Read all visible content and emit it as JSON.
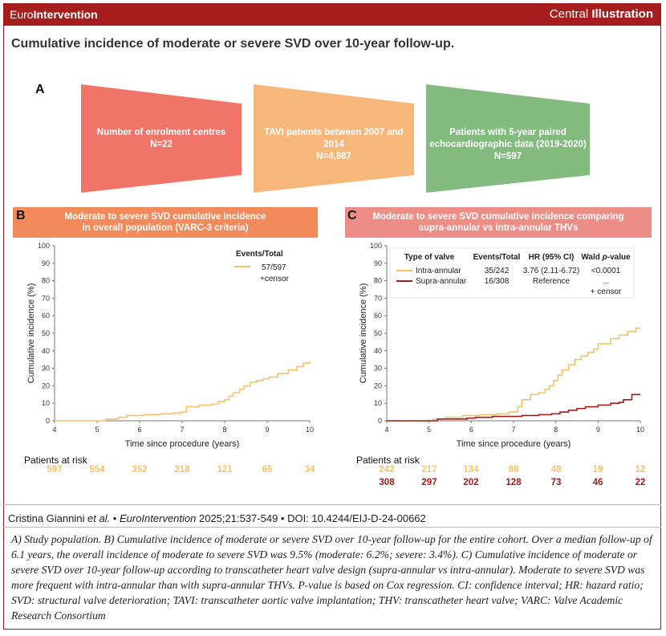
{
  "header": {
    "brand_plain": "Euro",
    "brand_bold": "Intervention",
    "right_plain": "Central ",
    "right_bold": "Illustration"
  },
  "title": "Cumulative incidence of moderate or severe SVD over 10-year follow-up.",
  "panel_a": {
    "letter": "A",
    "steps": [
      {
        "line1": "Number of enrolment centres",
        "line2": "N=22",
        "line3": "",
        "color": "#ef7569"
      },
      {
        "line1": "TAVI patients between 2007 and 2014",
        "line2": "N=4,987",
        "line3": "",
        "color": "#f8b77a"
      },
      {
        "line1": "Patients with 5-year paired",
        "line2": "echocardiographic data (2019-2020)",
        "line3": "N=597",
        "color": "#82bb7d"
      }
    ]
  },
  "panel_b": {
    "letter": "B",
    "title_line1": "Moderate to severe SVD cumulative incidence",
    "title_line2": "in overall population (VARC-3 criteria)",
    "title_color": "#f28a5c",
    "legend_header": "Events/Total",
    "legend_value": "57/597",
    "legend_censor": "+censor",
    "risk_label": "Patients at risk",
    "risk_values": [
      "597",
      "554",
      "352",
      "218",
      "121",
      "65",
      "34"
    ]
  },
  "panel_c": {
    "letter": "C",
    "title_line1": "Moderate to severe SVD cumulative incidence comparing",
    "title_line2": "supra-annular vs intra-annular THVs",
    "title_color": "#ed8e86",
    "legend_headers": {
      "type": "Type of valve",
      "events": "Events/Total",
      "hr": "HR (95% CI)",
      "wald": "Wald ",
      "wald_p": "p",
      "wald_rest": "-value"
    },
    "rows": [
      {
        "name": "Intra-annular",
        "events": "35/242",
        "hr": "3.76 (2.11-6.72)",
        "p": "<0.0001"
      },
      {
        "name": "Supra-annular",
        "events": "16/308",
        "hr": "Reference",
        "p": "..."
      }
    ],
    "legend_censor": "+ censor",
    "risk_label": "Patients at risk",
    "risk_intra": [
      "242",
      "217",
      "134",
      "88",
      "48",
      "19",
      "12"
    ],
    "risk_supra": [
      "308",
      "297",
      "202",
      "128",
      "73",
      "46",
      "22"
    ]
  },
  "citation": {
    "authors": "Cristina Giannini ",
    "etal": "et al.",
    "sep": " • ",
    "journal": "EuroIntervention",
    "rest": " 2025;21:537-549 • DOI: 10.4244/EIJ-D-24-00662"
  },
  "caption": "A) Study population. B) Cumulative incidence of moderate or severe SVD over 10-year follow-up for the entire cohort. Over a median follow-up of 6.1 years, the overall incidence of moderate to severe SVD was 9.5% (moderate: 6.2%; severe: 3.4%). C) Cumulative incidence of moderate or severe SVD over 10-year follow-up according to transcatheter heart valve design (supra-annular vs intra-annular). Moderate to severe SVD was more frequent with intra-annular than with supra-annular THVs. P-value is based on Cox regression. CI: confidence interval; HR: hazard ratio; SVD: structural valve deterioration; TAVI: transcatheter aortic valve implantation; THV: transcatheter heart valve; VARC: Valve Academic Research Consortium",
  "chart_data": [
    {
      "type": "line",
      "xlabel": "Time since procedure (years)",
      "ylabel": "Cumulative incidence (%)",
      "xlim": [
        4,
        10
      ],
      "ylim": [
        0,
        100
      ],
      "xticks": [
        4,
        5,
        6,
        7,
        8,
        9,
        10
      ],
      "yticks": [
        0,
        10,
        20,
        30,
        40,
        50,
        60,
        70,
        80,
        90,
        100
      ],
      "series": [
        {
          "name": "57/597",
          "color": "#f5c26b",
          "x": [
            4,
            5.2,
            5.5,
            5.7,
            6.1,
            6.5,
            6.8,
            7.0,
            7.1,
            7.4,
            7.7,
            7.85,
            8.0,
            8.1,
            8.2,
            8.35,
            8.45,
            8.6,
            8.75,
            8.9,
            9.05,
            9.25,
            9.5,
            9.7,
            9.85,
            10
          ],
          "y": [
            0,
            1,
            2,
            3,
            3.5,
            4,
            4.5,
            5,
            8,
            9,
            9.5,
            11,
            12,
            14,
            16,
            18,
            20,
            22,
            23,
            24,
            25,
            27,
            29,
            31,
            33,
            34
          ]
        }
      ]
    },
    {
      "type": "line",
      "xlabel": "Time since procedure (years)",
      "ylabel": "Cumulative incidence (%)",
      "xlim": [
        4,
        10
      ],
      "ylim": [
        0,
        100
      ],
      "xticks": [
        4,
        5,
        6,
        7,
        8,
        9,
        10
      ],
      "yticks": [
        0,
        10,
        20,
        30,
        40,
        50,
        60,
        70,
        80,
        90,
        100
      ],
      "series": [
        {
          "name": "Intra-annular",
          "color": "#f5c26b",
          "x": [
            4,
            5.1,
            5.4,
            5.8,
            6.2,
            6.6,
            6.9,
            7.1,
            7.2,
            7.4,
            7.6,
            7.75,
            7.85,
            7.95,
            8.05,
            8.15,
            8.3,
            8.45,
            8.6,
            8.75,
            8.9,
            9.0,
            9.3,
            9.5,
            9.7,
            9.9,
            10
          ],
          "y": [
            0,
            1,
            2,
            3,
            3.5,
            4,
            5,
            8,
            12,
            15,
            16,
            18,
            20,
            23,
            26,
            29,
            32,
            35,
            37,
            39,
            41,
            44,
            47,
            49,
            51,
            53,
            53
          ]
        },
        {
          "name": "Supra-annular",
          "color": "#a31c1c",
          "x": [
            4,
            5.2,
            5.9,
            6.1,
            6.5,
            7.2,
            7.6,
            7.9,
            8.1,
            8.3,
            8.5,
            8.7,
            9.0,
            9.3,
            9.5,
            9.6,
            9.8,
            10
          ],
          "y": [
            0,
            1,
            1.5,
            2,
            2.5,
            3,
            3.5,
            4,
            5,
            6,
            7,
            8,
            9,
            10,
            10.5,
            12,
            15,
            15
          ]
        }
      ]
    }
  ]
}
